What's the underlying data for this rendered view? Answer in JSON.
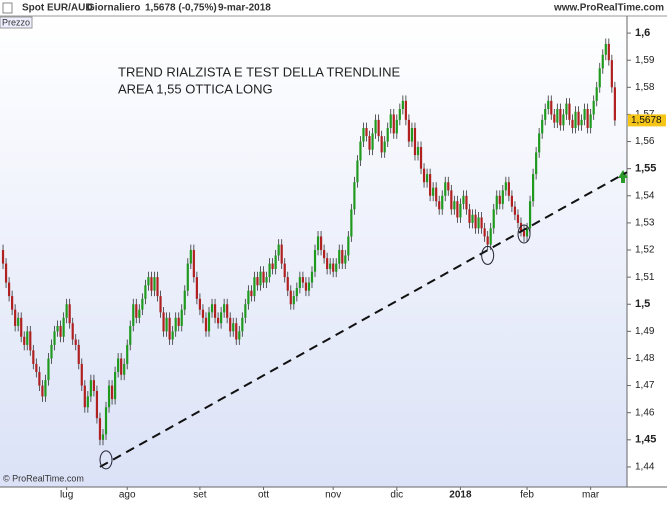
{
  "chart_data": {
    "type": "candlestick",
    "header": {
      "symbol": "Spot EUR/AUD",
      "period": "Giornaliero",
      "quote": "1,5678 (-0,75%)",
      "date": "9-mar-2018",
      "site": "www.ProRealTime.com"
    },
    "panel_label": "Prezzo",
    "copyright": "© ProRealTime.com",
    "annotation": [
      "TREND RIALZISTA E TEST DELLA TRENDLINE",
      "AREA 1,55 OTTICA LONG"
    ],
    "open": [
      1.52,
      1.515,
      1.508,
      1.503,
      1.498,
      1.492,
      1.495,
      1.488,
      1.485,
      1.49,
      1.483,
      1.478,
      1.475,
      1.47,
      1.466,
      1.472,
      1.48,
      1.485,
      1.49,
      1.492,
      1.488,
      1.495,
      1.5,
      1.493,
      1.487,
      1.485,
      1.478,
      1.47,
      1.462,
      1.466,
      1.472,
      1.468,
      1.458,
      1.45,
      1.452,
      1.462,
      1.47,
      1.465,
      1.475,
      1.48,
      1.474,
      1.478,
      1.485,
      1.492,
      1.5,
      1.495,
      1.498,
      1.502,
      1.507,
      1.51,
      1.505,
      1.51,
      1.503,
      1.497,
      1.49,
      1.495,
      1.487,
      1.49,
      1.495,
      1.492,
      1.498,
      1.505,
      1.515,
      1.52,
      1.51,
      1.502,
      1.498,
      1.495,
      1.49,
      1.497,
      1.5,
      1.495,
      1.493,
      1.497,
      1.5,
      1.495,
      1.49,
      1.493,
      1.487,
      1.49,
      1.495,
      1.5,
      1.505,
      1.503,
      1.51,
      1.507,
      1.512,
      1.508,
      1.51,
      1.515,
      1.513,
      1.518,
      1.522,
      1.515,
      1.51,
      1.505,
      1.5,
      1.503,
      1.506,
      1.51,
      1.508,
      1.505,
      1.508,
      1.512,
      1.52,
      1.525,
      1.52,
      1.517,
      1.513,
      1.515,
      1.512,
      1.515,
      1.52,
      1.515,
      1.518,
      1.525,
      1.535,
      1.545,
      1.553,
      1.56,
      1.565,
      1.562,
      1.557,
      1.563,
      1.568,
      1.562,
      1.556,
      1.56,
      1.565,
      1.57,
      1.563,
      1.568,
      1.572,
      1.575,
      1.568,
      1.56,
      1.565,
      1.555,
      1.558,
      1.55,
      1.545,
      1.548,
      1.54,
      1.543,
      1.538,
      1.535,
      1.54,
      1.545,
      1.542,
      1.535,
      1.538,
      1.532,
      1.537,
      1.54,
      1.535,
      1.53,
      1.533,
      1.528,
      1.532,
      1.528,
      1.525,
      1.522,
      1.528,
      1.535,
      1.54,
      1.537,
      1.542,
      1.545,
      1.54,
      1.536,
      1.533,
      1.53,
      1.527,
      1.525,
      1.528,
      1.538,
      1.548,
      1.556,
      1.563,
      1.568,
      1.572,
      1.575,
      1.57,
      1.567,
      1.572,
      1.566,
      1.57,
      1.574,
      1.568,
      1.565,
      1.571,
      1.566,
      1.568,
      1.572,
      1.565,
      1.57,
      1.575,
      1.58,
      1.587,
      1.592,
      1.596,
      1.59,
      1.58
    ],
    "high": [
      1.522,
      1.517,
      1.51,
      1.505,
      1.5,
      1.497,
      1.497,
      1.49,
      1.492,
      1.492,
      1.485,
      1.48,
      1.477,
      1.472,
      1.474,
      1.482,
      1.487,
      1.492,
      1.494,
      1.494,
      1.497,
      1.502,
      1.502,
      1.495,
      1.489,
      1.487,
      1.48,
      1.472,
      1.468,
      1.474,
      1.474,
      1.47,
      1.46,
      1.454,
      1.464,
      1.472,
      1.472,
      1.477,
      1.482,
      1.482,
      1.48,
      1.487,
      1.494,
      1.502,
      1.502,
      1.5,
      1.504,
      1.509,
      1.512,
      1.512,
      1.512,
      1.512,
      1.505,
      1.499,
      1.497,
      1.497,
      1.492,
      1.497,
      1.497,
      1.5,
      1.507,
      1.517,
      1.522,
      1.522,
      1.512,
      1.504,
      1.5,
      1.497,
      1.499,
      1.502,
      1.502,
      1.497,
      1.499,
      1.502,
      1.502,
      1.497,
      1.495,
      1.495,
      1.492,
      1.497,
      1.502,
      1.507,
      1.507,
      1.512,
      1.512,
      1.514,
      1.514,
      1.512,
      1.517,
      1.517,
      1.52,
      1.524,
      1.524,
      1.517,
      1.512,
      1.507,
      1.505,
      1.508,
      1.512,
      1.512,
      1.51,
      1.51,
      1.514,
      1.522,
      1.527,
      1.527,
      1.522,
      1.519,
      1.517,
      1.517,
      1.517,
      1.522,
      1.522,
      1.52,
      1.527,
      1.537,
      1.547,
      1.555,
      1.562,
      1.567,
      1.567,
      1.564,
      1.565,
      1.57,
      1.57,
      1.564,
      1.562,
      1.567,
      1.572,
      1.572,
      1.57,
      1.574,
      1.577,
      1.577,
      1.57,
      1.567,
      1.567,
      1.56,
      1.56,
      1.552,
      1.55,
      1.55,
      1.545,
      1.545,
      1.54,
      1.542,
      1.547,
      1.547,
      1.544,
      1.54,
      1.54,
      1.539,
      1.542,
      1.542,
      1.537,
      1.535,
      1.535,
      1.534,
      1.534,
      1.53,
      1.527,
      1.53,
      1.537,
      1.542,
      1.542,
      1.544,
      1.547,
      1.547,
      1.542,
      1.538,
      1.535,
      1.532,
      1.529,
      1.53,
      1.54,
      1.55,
      1.558,
      1.565,
      1.57,
      1.574,
      1.577,
      1.577,
      1.572,
      1.574,
      1.574,
      1.572,
      1.576,
      1.576,
      1.57,
      1.573,
      1.573,
      1.57,
      1.574,
      1.574,
      1.572,
      1.577,
      1.582,
      1.589,
      1.594,
      1.598,
      1.598,
      1.592,
      1.582
    ],
    "low": [
      1.513,
      1.506,
      1.501,
      1.496,
      1.49,
      1.49,
      1.486,
      1.483,
      1.483,
      1.481,
      1.476,
      1.473,
      1.468,
      1.464,
      1.464,
      1.47,
      1.478,
      1.483,
      1.488,
      1.486,
      1.486,
      1.493,
      1.491,
      1.485,
      1.483,
      1.476,
      1.468,
      1.46,
      1.46,
      1.464,
      1.466,
      1.456,
      1.448,
      1.448,
      1.45,
      1.46,
      1.463,
      1.463,
      1.473,
      1.472,
      1.472,
      1.476,
      1.483,
      1.49,
      1.493,
      1.493,
      1.496,
      1.5,
      1.505,
      1.503,
      1.503,
      1.501,
      1.495,
      1.488,
      1.488,
      1.485,
      1.485,
      1.488,
      1.49,
      1.49,
      1.496,
      1.503,
      1.513,
      1.508,
      1.5,
      1.496,
      1.493,
      1.488,
      1.488,
      1.495,
      1.493,
      1.491,
      1.491,
      1.495,
      1.493,
      1.488,
      1.488,
      1.485,
      1.485,
      1.488,
      1.493,
      1.498,
      1.501,
      1.501,
      1.505,
      1.505,
      1.506,
      1.506,
      1.508,
      1.511,
      1.511,
      1.516,
      1.513,
      1.508,
      1.503,
      1.498,
      1.498,
      1.501,
      1.504,
      1.506,
      1.503,
      1.503,
      1.506,
      1.51,
      1.518,
      1.518,
      1.515,
      1.511,
      1.511,
      1.51,
      1.51,
      1.513,
      1.513,
      1.513,
      1.516,
      1.523,
      1.533,
      1.543,
      1.551,
      1.558,
      1.56,
      1.555,
      1.555,
      1.561,
      1.56,
      1.554,
      1.554,
      1.558,
      1.563,
      1.561,
      1.561,
      1.566,
      1.57,
      1.566,
      1.558,
      1.558,
      1.553,
      1.553,
      1.548,
      1.543,
      1.543,
      1.538,
      1.538,
      1.536,
      1.533,
      1.533,
      1.538,
      1.54,
      1.533,
      1.533,
      1.53,
      1.53,
      1.535,
      1.533,
      1.528,
      1.528,
      1.526,
      1.526,
      1.526,
      1.523,
      1.52,
      1.52,
      1.526,
      1.533,
      1.535,
      1.535,
      1.54,
      1.538,
      1.534,
      1.531,
      1.528,
      1.525,
      1.523,
      1.523,
      1.526,
      1.536,
      1.546,
      1.554,
      1.561,
      1.566,
      1.57,
      1.568,
      1.565,
      1.565,
      1.564,
      1.564,
      1.568,
      1.566,
      1.563,
      1.563,
      1.564,
      1.564,
      1.566,
      1.563,
      1.563,
      1.568,
      1.573,
      1.578,
      1.585,
      1.59,
      1.588,
      1.578,
      1.5658
    ],
    "close": [
      1.515,
      1.508,
      1.503,
      1.498,
      1.492,
      1.495,
      1.488,
      1.485,
      1.49,
      1.483,
      1.478,
      1.475,
      1.47,
      1.466,
      1.472,
      1.48,
      1.485,
      1.49,
      1.492,
      1.488,
      1.495,
      1.5,
      1.493,
      1.487,
      1.485,
      1.478,
      1.47,
      1.462,
      1.466,
      1.472,
      1.468,
      1.458,
      1.45,
      1.452,
      1.462,
      1.47,
      1.465,
      1.475,
      1.48,
      1.474,
      1.478,
      1.485,
      1.492,
      1.5,
      1.495,
      1.498,
      1.502,
      1.507,
      1.51,
      1.505,
      1.51,
      1.503,
      1.497,
      1.49,
      1.495,
      1.487,
      1.49,
      1.495,
      1.492,
      1.498,
      1.505,
      1.515,
      1.52,
      1.51,
      1.502,
      1.498,
      1.495,
      1.49,
      1.497,
      1.5,
      1.495,
      1.493,
      1.497,
      1.5,
      1.495,
      1.49,
      1.493,
      1.487,
      1.49,
      1.495,
      1.5,
      1.505,
      1.503,
      1.51,
      1.507,
      1.512,
      1.508,
      1.51,
      1.515,
      1.513,
      1.518,
      1.522,
      1.515,
      1.51,
      1.505,
      1.5,
      1.503,
      1.506,
      1.51,
      1.508,
      1.505,
      1.508,
      1.512,
      1.52,
      1.525,
      1.52,
      1.517,
      1.513,
      1.515,
      1.512,
      1.515,
      1.52,
      1.515,
      1.518,
      1.525,
      1.535,
      1.545,
      1.553,
      1.56,
      1.565,
      1.562,
      1.557,
      1.563,
      1.568,
      1.562,
      1.556,
      1.56,
      1.565,
      1.57,
      1.563,
      1.568,
      1.572,
      1.575,
      1.568,
      1.56,
      1.565,
      1.555,
      1.558,
      1.55,
      1.545,
      1.548,
      1.54,
      1.543,
      1.538,
      1.535,
      1.54,
      1.545,
      1.542,
      1.535,
      1.538,
      1.532,
      1.537,
      1.54,
      1.535,
      1.53,
      1.533,
      1.528,
      1.532,
      1.528,
      1.525,
      1.522,
      1.528,
      1.535,
      1.54,
      1.537,
      1.542,
      1.545,
      1.54,
      1.536,
      1.533,
      1.53,
      1.527,
      1.525,
      1.528,
      1.538,
      1.548,
      1.556,
      1.563,
      1.568,
      1.572,
      1.575,
      1.57,
      1.567,
      1.572,
      1.566,
      1.57,
      1.574,
      1.568,
      1.565,
      1.571,
      1.566,
      1.568,
      1.572,
      1.565,
      1.57,
      1.575,
      1.58,
      1.587,
      1.592,
      1.596,
      1.59,
      1.58,
      1.5678
    ],
    "up_color": "#1f9a1f",
    "down_color": "#b02020",
    "xlim": [
      -1,
      206
    ],
    "xticks": [
      {
        "value": 21,
        "label": "lug"
      },
      {
        "value": 41,
        "label": "ago"
      },
      {
        "value": 65,
        "label": "set"
      },
      {
        "value": 86,
        "label": "ott"
      },
      {
        "value": 109,
        "label": "nov"
      },
      {
        "value": 130,
        "label": "dic"
      },
      {
        "value": 151,
        "label": "2018"
      },
      {
        "value": 173,
        "label": "feb"
      },
      {
        "value": 194,
        "label": "mar"
      }
    ],
    "ylim": [
      1.4326,
      1.6063
    ],
    "yticks": [
      {
        "value": 1.44,
        "label": "1,44"
      },
      {
        "value": 1.45,
        "label": "1,45"
      },
      {
        "value": 1.46,
        "label": "1,46"
      },
      {
        "value": 1.47,
        "label": "1,47"
      },
      {
        "value": 1.48,
        "label": "1,48"
      },
      {
        "value": 1.49,
        "label": "1,49"
      },
      {
        "value": 1.5,
        "label": "1,5"
      },
      {
        "value": 1.51,
        "label": "1,51"
      },
      {
        "value": 1.52,
        "label": "1,52"
      },
      {
        "value": 1.53,
        "label": "1,53"
      },
      {
        "value": 1.54,
        "label": "1,54"
      },
      {
        "value": 1.55,
        "label": "1,55"
      },
      {
        "value": 1.56,
        "label": "1,56"
      },
      {
        "value": 1.57,
        "label": "1,57"
      },
      {
        "value": 1.58,
        "label": "1,58"
      },
      {
        "value": 1.59,
        "label": "1,59"
      },
      {
        "value": 1.6,
        "label": "1,6"
      }
    ],
    "last_price": {
      "value": 1.5678,
      "label": "1,5678"
    },
    "trendline": {
      "x": [
        32,
        206
      ],
      "y": [
        1.44,
        1.5487
      ]
    },
    "touch_points": {
      "x": [
        34,
        160,
        172
      ],
      "y": [
        1.4426,
        1.518,
        1.5259
      ]
    }
  }
}
